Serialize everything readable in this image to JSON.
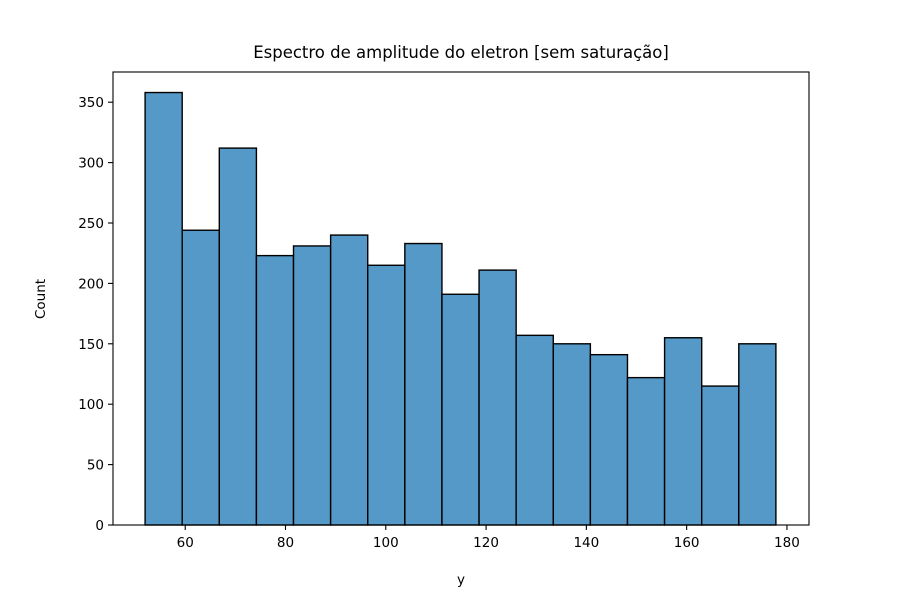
{
  "chart_data": {
    "type": "histogram",
    "title": "Espectro de amplitude do eletron [sem saturação]",
    "xlabel": "y",
    "ylabel": "Count",
    "xlim": [
      45.6,
      184.4
    ],
    "ylim": [
      0,
      375
    ],
    "xticks": [
      60,
      80,
      100,
      120,
      140,
      160,
      180
    ],
    "yticks": [
      0,
      50,
      100,
      150,
      200,
      250,
      300,
      350
    ],
    "bar_color": "#5499c7",
    "edge_color": "#000000",
    "grid": false,
    "legend": "none",
    "bins": [
      {
        "x0": 52.0,
        "x1": 59.4,
        "count": 358
      },
      {
        "x0": 59.4,
        "x1": 66.8,
        "count": 244
      },
      {
        "x0": 66.8,
        "x1": 74.2,
        "count": 312
      },
      {
        "x0": 74.2,
        "x1": 81.6,
        "count": 223
      },
      {
        "x0": 81.6,
        "x1": 89.0,
        "count": 231
      },
      {
        "x0": 89.0,
        "x1": 96.4,
        "count": 240
      },
      {
        "x0": 96.4,
        "x1": 103.8,
        "count": 215
      },
      {
        "x0": 103.8,
        "x1": 111.2,
        "count": 233
      },
      {
        "x0": 111.2,
        "x1": 118.6,
        "count": 191
      },
      {
        "x0": 118.6,
        "x1": 126.0,
        "count": 211
      },
      {
        "x0": 126.0,
        "x1": 133.4,
        "count": 157
      },
      {
        "x0": 133.4,
        "x1": 140.8,
        "count": 150
      },
      {
        "x0": 140.8,
        "x1": 148.2,
        "count": 141
      },
      {
        "x0": 148.2,
        "x1": 155.6,
        "count": 122
      },
      {
        "x0": 155.6,
        "x1": 163.0,
        "count": 155
      },
      {
        "x0": 163.0,
        "x1": 170.4,
        "count": 115
      },
      {
        "x0": 170.4,
        "x1": 177.8,
        "count": 150
      }
    ]
  }
}
